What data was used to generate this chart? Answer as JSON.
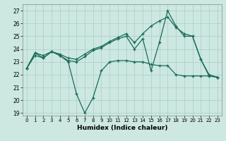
{
  "xlabel": "Humidex (Indice chaleur)",
  "ylabel": "",
  "bg_color": "#cce8e0",
  "grid_color": "#aacccc",
  "line_color": "#1a6b5a",
  "xlim": [
    -0.5,
    23.5
  ],
  "ylim": [
    18.8,
    27.5
  ],
  "yticks": [
    19,
    20,
    21,
    22,
    23,
    24,
    25,
    26,
    27
  ],
  "xticks": [
    0,
    1,
    2,
    3,
    4,
    5,
    6,
    7,
    8,
    9,
    10,
    11,
    12,
    13,
    14,
    15,
    16,
    17,
    18,
    19,
    20,
    21,
    22,
    23
  ],
  "series": [
    [
      22.5,
      23.7,
      23.3,
      23.8,
      23.5,
      23.1,
      23.0,
      23.4,
      23.9,
      24.1,
      24.5,
      24.8,
      25.0,
      24.0,
      24.8,
      22.3,
      24.5,
      27.0,
      25.8,
      25.0,
      25.0,
      23.2,
      21.9,
      21.8
    ],
    [
      22.5,
      23.7,
      23.5,
      23.8,
      23.6,
      23.3,
      23.2,
      23.6,
      24.0,
      24.2,
      24.6,
      24.9,
      25.2,
      24.5,
      25.2,
      25.8,
      26.2,
      26.5,
      25.7,
      25.2,
      25.0,
      23.2,
      22.0,
      21.8
    ],
    [
      22.5,
      23.5,
      23.3,
      23.8,
      23.5,
      23.0,
      20.5,
      19.0,
      20.2,
      22.3,
      23.0,
      23.1,
      23.1,
      23.0,
      23.0,
      22.8,
      22.7,
      22.7,
      22.0,
      21.9,
      21.9,
      21.9,
      21.9,
      21.8
    ]
  ]
}
